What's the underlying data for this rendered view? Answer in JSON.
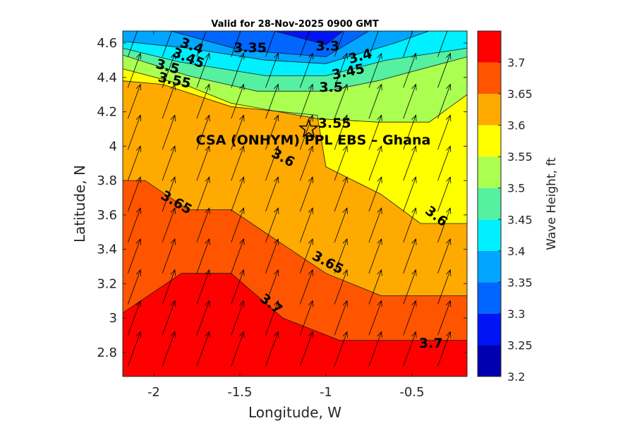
{
  "chart_data": {
    "type": "contourf",
    "title": "Valid for 28-Nov-2025 0900 GMT",
    "xlabel": "Longitude, W",
    "ylabel": "Latitude, N",
    "xlim": [
      -2.18,
      -0.18
    ],
    "ylim": [
      2.66,
      4.67
    ],
    "x_ticks": [
      -2,
      -1.5,
      -1,
      -0.5
    ],
    "x_tick_labels": [
      "-2",
      "-1.5",
      "-1",
      "-0.5"
    ],
    "y_ticks": [
      2.8,
      3,
      3.2,
      3.4,
      3.6,
      3.8,
      4,
      4.2,
      4.4,
      4.6
    ],
    "y_tick_labels": [
      "2.8",
      "3",
      "3.2",
      "3.4",
      "3.6",
      "3.8",
      "4",
      "4.2",
      "4.4",
      "4.6"
    ],
    "colorbar": {
      "label": "Wave Height, ft",
      "range": [
        3.2,
        3.75
      ],
      "ticks": [
        "3.2",
        "3.25",
        "3.3",
        "3.35",
        "3.4",
        "3.45",
        "3.5",
        "3.55",
        "3.6",
        "3.65",
        "3.7"
      ],
      "bands": [
        {
          "from": 3.2,
          "to": 3.25,
          "color": "#0000b0"
        },
        {
          "from": 3.25,
          "to": 3.3,
          "color": "#0014f5"
        },
        {
          "from": 3.3,
          "to": 3.35,
          "color": "#0066ff"
        },
        {
          "from": 3.35,
          "to": 3.4,
          "color": "#00a6ff"
        },
        {
          "from": 3.4,
          "to": 3.45,
          "color": "#00f0ff"
        },
        {
          "from": 3.45,
          "to": 3.5,
          "color": "#55f0a0"
        },
        {
          "from": 3.5,
          "to": 3.55,
          "color": "#aaff50"
        },
        {
          "from": 3.55,
          "to": 3.6,
          "color": "#ffff00"
        },
        {
          "from": 3.6,
          "to": 3.65,
          "color": "#ffaa00"
        },
        {
          "from": 3.65,
          "to": 3.7,
          "color": "#ff5500"
        },
        {
          "from": 3.7,
          "to": 3.75,
          "color": "#ff0000"
        }
      ]
    },
    "contour_lines": [
      {
        "level": 3.7,
        "points": [
          [
            -2.18,
            3.03
          ],
          [
            -1.84,
            3.26
          ],
          [
            -1.55,
            3.26
          ],
          [
            -1.25,
            3.0
          ],
          [
            -0.92,
            2.87
          ],
          [
            -0.18,
            2.87
          ]
        ]
      },
      {
        "level": 3.65,
        "points": [
          [
            -2.18,
            3.8
          ],
          [
            -2.05,
            3.8
          ],
          [
            -1.8,
            3.63
          ],
          [
            -1.55,
            3.63
          ],
          [
            -1.0,
            3.26
          ],
          [
            -0.68,
            3.13
          ],
          [
            -0.18,
            3.13
          ]
        ]
      },
      {
        "level": 3.6,
        "points": [
          [
            -2.18,
            4.38
          ],
          [
            -1.95,
            4.36
          ],
          [
            -1.55,
            4.23
          ],
          [
            -1.05,
            4.18
          ],
          [
            -1.0,
            3.88
          ],
          [
            -0.68,
            3.72
          ],
          [
            -0.45,
            3.55
          ],
          [
            -0.18,
            3.55
          ]
        ]
      },
      {
        "level": 3.55,
        "points": [
          [
            -2.18,
            4.45
          ],
          [
            -1.8,
            4.35
          ],
          [
            -1.55,
            4.25
          ],
          [
            -1.05,
            4.16
          ],
          [
            -0.7,
            4.14
          ],
          [
            -0.4,
            4.14
          ],
          [
            -0.18,
            4.3
          ]
        ]
      },
      {
        "level": 3.5,
        "points": [
          [
            -2.18,
            4.53
          ],
          [
            -1.8,
            4.41
          ],
          [
            -1.4,
            4.32
          ],
          [
            -1.0,
            4.32
          ],
          [
            -0.7,
            4.38
          ],
          [
            -0.18,
            4.52
          ]
        ]
      },
      {
        "level": 3.45,
        "points": [
          [
            -2.18,
            4.57
          ],
          [
            -1.85,
            4.49
          ],
          [
            -1.35,
            4.41
          ],
          [
            -1.0,
            4.41
          ],
          [
            -0.65,
            4.5
          ],
          [
            -0.18,
            4.57
          ]
        ]
      },
      {
        "level": 3.4,
        "points": [
          [
            -2.18,
            4.61
          ],
          [
            -1.8,
            4.57
          ],
          [
            -1.35,
            4.5
          ],
          [
            -1.0,
            4.48
          ],
          [
            -0.6,
            4.6
          ],
          [
            -0.4,
            4.67
          ]
        ]
      },
      {
        "level": 3.35,
        "points": [
          [
            -1.9,
            4.67
          ],
          [
            -1.5,
            4.56
          ],
          [
            -1.0,
            4.52
          ],
          [
            -0.75,
            4.67
          ]
        ]
      },
      {
        "level": 3.3,
        "points": [
          [
            -1.3,
            4.67
          ],
          [
            -1.0,
            4.59
          ],
          [
            -0.9,
            4.67
          ]
        ]
      }
    ],
    "annotations": [
      {
        "text": "3.4",
        "x": -1.78,
        "y": 4.58,
        "angle": 20
      },
      {
        "text": "3.35",
        "x": -1.44,
        "y": 4.57,
        "angle": 0
      },
      {
        "text": "3.3",
        "x": -0.99,
        "y": 4.58,
        "angle": 0
      },
      {
        "text": "3.45",
        "x": -1.8,
        "y": 4.51,
        "angle": 22
      },
      {
        "text": "3.4",
        "x": -0.8,
        "y": 4.52,
        "angle": -15
      },
      {
        "text": "3.5",
        "x": -1.92,
        "y": 4.46,
        "angle": 15
      },
      {
        "text": "3.45",
        "x": -0.87,
        "y": 4.43,
        "angle": -12
      },
      {
        "text": "3.55",
        "x": -1.88,
        "y": 4.38,
        "angle": 12
      },
      {
        "text": "3.5",
        "x": -0.97,
        "y": 4.34,
        "angle": 0
      },
      {
        "text": "3.55",
        "x": -0.95,
        "y": 4.13,
        "angle": 0
      },
      {
        "text": "3.6",
        "x": -1.25,
        "y": 3.93,
        "angle": 28
      },
      {
        "text": "3.65",
        "x": -1.87,
        "y": 3.67,
        "angle": 30
      },
      {
        "text": "3.6",
        "x": -0.36,
        "y": 3.59,
        "angle": 38
      },
      {
        "text": "3.65",
        "x": -0.99,
        "y": 3.32,
        "angle": 28
      },
      {
        "text": "3.7",
        "x": -1.32,
        "y": 3.08,
        "angle": 38
      },
      {
        "text": "3.7",
        "x": -0.39,
        "y": 2.85,
        "angle": 0
      }
    ],
    "site": {
      "label": "CSA (ONHYM) PPL EBS  – Ghana",
      "x": -1.1,
      "y": 4.1,
      "marker": "pentagram"
    },
    "vector_field": {
      "dir_deg_from_north": 20,
      "x": [
        -2.15,
        -1.95,
        -1.75,
        -1.55,
        -1.35,
        -1.15,
        -0.95,
        -0.75,
        -0.55,
        -0.35
      ],
      "y": [
        2.72,
        2.9,
        3.08,
        3.26,
        3.44,
        3.62,
        3.8,
        3.98,
        4.16,
        4.34,
        4.52
      ]
    }
  }
}
